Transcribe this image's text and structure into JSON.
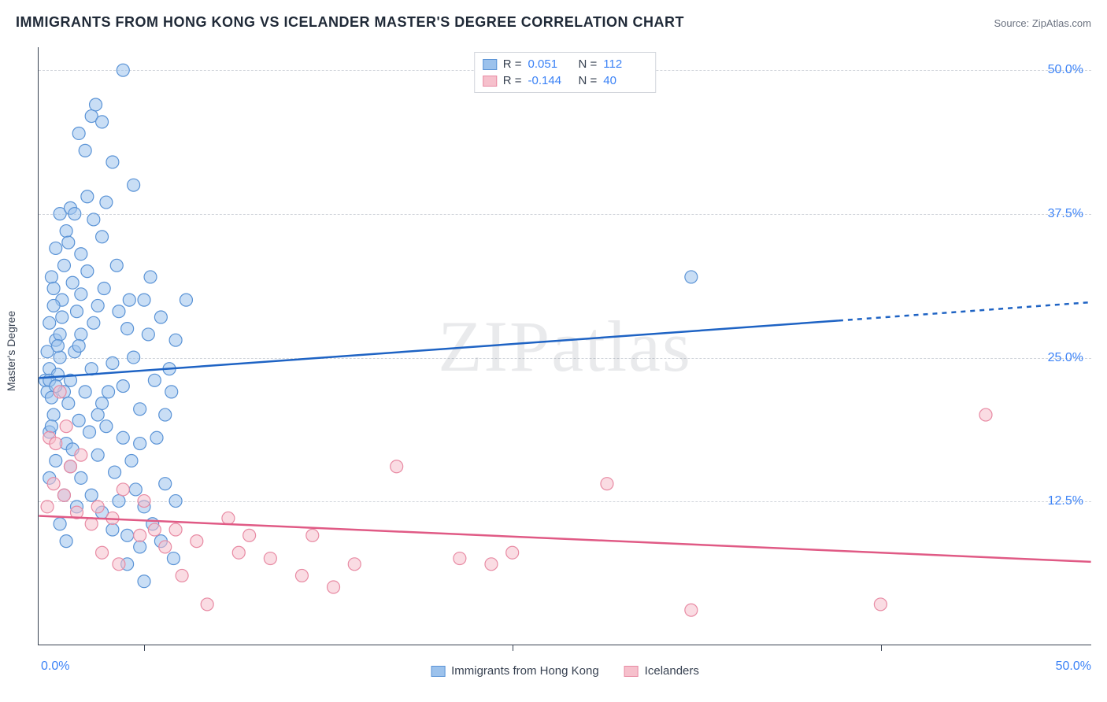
{
  "title": "IMMIGRANTS FROM HONG KONG VS ICELANDER MASTER'S DEGREE CORRELATION CHART",
  "source_label": "Source: ",
  "source_name": "ZipAtlas.com",
  "watermark": "ZIPatlas",
  "y_axis_label": "Master's Degree",
  "chart": {
    "type": "scatter",
    "xlim": [
      0,
      50
    ],
    "ylim": [
      0,
      52
    ],
    "x_min_label": "0.0%",
    "x_max_label": "50.0%",
    "y_ticks": [
      12.5,
      25.0,
      37.5,
      50.0
    ],
    "y_tick_labels": [
      "12.5%",
      "25.0%",
      "37.5%",
      "50.0%"
    ],
    "x_tick_positions": [
      5,
      22.5,
      40
    ],
    "grid_color": "#d1d5db",
    "axis_color": "#374151",
    "tick_label_color": "#3b82f6",
    "background_color": "#ffffff",
    "marker_radius": 8,
    "marker_opacity": 0.55,
    "line_width": 2.5,
    "series": [
      {
        "name": "Immigrants from Hong Kong",
        "key": "hongkong",
        "fill_color": "#9cc2ec",
        "stroke_color": "#5a93d6",
        "line_color": "#1e63c4",
        "r_value": "0.051",
        "n_value": "112",
        "trend": {
          "x1": 0,
          "y1": 23.2,
          "x2": 38,
          "y2": 28.2,
          "dash_x2": 50,
          "dash_y2": 29.8
        },
        "points": [
          [
            0.3,
            23.0
          ],
          [
            0.4,
            22.0
          ],
          [
            0.5,
            24.0
          ],
          [
            0.6,
            21.5
          ],
          [
            0.5,
            18.5
          ],
          [
            0.8,
            26.5
          ],
          [
            0.7,
            20.0
          ],
          [
            0.9,
            23.5
          ],
          [
            1.0,
            27.0
          ],
          [
            1.1,
            30.0
          ],
          [
            1.2,
            33.0
          ],
          [
            1.0,
            37.5
          ],
          [
            1.3,
            36.0
          ],
          [
            0.8,
            34.5
          ],
          [
            0.6,
            32.0
          ],
          [
            1.5,
            38.0
          ],
          [
            1.4,
            35.0
          ],
          [
            1.0,
            25.0
          ],
          [
            0.5,
            28.0
          ],
          [
            0.7,
            29.5
          ],
          [
            1.6,
            31.5
          ],
          [
            1.8,
            29.0
          ],
          [
            1.2,
            22.0
          ],
          [
            1.5,
            23.0
          ],
          [
            1.7,
            25.5
          ],
          [
            2.0,
            27.0
          ],
          [
            1.9,
            19.5
          ],
          [
            1.3,
            17.5
          ],
          [
            2.2,
            22.0
          ],
          [
            2.5,
            24.0
          ],
          [
            2.0,
            30.5
          ],
          [
            2.3,
            32.5
          ],
          [
            2.8,
            29.5
          ],
          [
            3.0,
            35.5
          ],
          [
            3.2,
            38.5
          ],
          [
            2.6,
            37.0
          ],
          [
            2.2,
            43.0
          ],
          [
            2.5,
            46.0
          ],
          [
            4.0,
            50.0
          ],
          [
            3.5,
            42.0
          ],
          [
            4.5,
            40.0
          ],
          [
            3.8,
            29.0
          ],
          [
            4.2,
            27.5
          ],
          [
            3.5,
            24.5
          ],
          [
            4.0,
            22.5
          ],
          [
            4.5,
            25.0
          ],
          [
            5.0,
            30.0
          ],
          [
            5.2,
            27.0
          ],
          [
            4.8,
            20.5
          ],
          [
            5.5,
            23.0
          ],
          [
            3.0,
            21.0
          ],
          [
            3.2,
            19.0
          ],
          [
            2.8,
            16.5
          ],
          [
            3.6,
            15.0
          ],
          [
            4.0,
            18.0
          ],
          [
            4.4,
            16.0
          ],
          [
            3.8,
            12.5
          ],
          [
            4.6,
            13.5
          ],
          [
            5.0,
            12.0
          ],
          [
            3.0,
            11.5
          ],
          [
            3.5,
            10.0
          ],
          [
            4.2,
            9.5
          ],
          [
            5.4,
            10.5
          ],
          [
            2.5,
            13.0
          ],
          [
            2.0,
            14.5
          ],
          [
            1.5,
            15.5
          ],
          [
            1.8,
            12.0
          ],
          [
            1.2,
            13.0
          ],
          [
            1.6,
            17.0
          ],
          [
            2.4,
            18.5
          ],
          [
            2.8,
            20.0
          ],
          [
            3.3,
            22.0
          ],
          [
            4.8,
            17.5
          ],
          [
            5.6,
            18.0
          ],
          [
            6.0,
            20.0
          ],
          [
            6.2,
            24.0
          ],
          [
            6.5,
            26.5
          ],
          [
            7.0,
            30.0
          ],
          [
            6.0,
            14.0
          ],
          [
            6.5,
            12.5
          ],
          [
            5.8,
            9.0
          ],
          [
            6.4,
            7.5
          ],
          [
            5.0,
            5.5
          ],
          [
            4.2,
            7.0
          ],
          [
            4.8,
            8.5
          ],
          [
            0.5,
            14.5
          ],
          [
            0.8,
            16.0
          ],
          [
            1.0,
            10.5
          ],
          [
            1.3,
            9.0
          ],
          [
            0.6,
            19.0
          ],
          [
            0.4,
            25.5
          ],
          [
            0.7,
            31.0
          ],
          [
            1.1,
            28.5
          ],
          [
            0.9,
            26.0
          ],
          [
            2.0,
            34.0
          ],
          [
            2.3,
            39.0
          ],
          [
            1.7,
            37.5
          ],
          [
            1.9,
            44.5
          ],
          [
            2.7,
            47.0
          ],
          [
            3.0,
            45.5
          ],
          [
            31.0,
            32.0
          ],
          [
            0.5,
            23.0
          ],
          [
            0.8,
            22.5
          ],
          [
            1.4,
            21.0
          ],
          [
            1.9,
            26.0
          ],
          [
            2.6,
            28.0
          ],
          [
            3.1,
            31.0
          ],
          [
            3.7,
            33.0
          ],
          [
            4.3,
            30.0
          ],
          [
            5.3,
            32.0
          ],
          [
            5.8,
            28.5
          ],
          [
            6.3,
            22.0
          ]
        ]
      },
      {
        "name": "Icelanders",
        "key": "icelanders",
        "fill_color": "#f6c0cc",
        "stroke_color": "#e88aa3",
        "line_color": "#e05a85",
        "r_value": "-0.144",
        "n_value": "40",
        "trend": {
          "x1": 0,
          "y1": 11.2,
          "x2": 50,
          "y2": 7.2
        },
        "points": [
          [
            0.5,
            18.0
          ],
          [
            0.8,
            17.5
          ],
          [
            1.0,
            22.0
          ],
          [
            1.3,
            19.0
          ],
          [
            1.5,
            15.5
          ],
          [
            1.2,
            13.0
          ],
          [
            0.7,
            14.0
          ],
          [
            0.4,
            12.0
          ],
          [
            2.0,
            16.5
          ],
          [
            1.8,
            11.5
          ],
          [
            2.5,
            10.5
          ],
          [
            3.0,
            8.0
          ],
          [
            2.8,
            12.0
          ],
          [
            3.5,
            11.0
          ],
          [
            4.0,
            13.5
          ],
          [
            4.8,
            9.5
          ],
          [
            5.5,
            10.0
          ],
          [
            5.0,
            12.5
          ],
          [
            6.0,
            8.5
          ],
          [
            6.5,
            10.0
          ],
          [
            7.5,
            9.0
          ],
          [
            8.0,
            3.5
          ],
          [
            9.0,
            11.0
          ],
          [
            9.5,
            8.0
          ],
          [
            10.0,
            9.5
          ],
          [
            11.0,
            7.5
          ],
          [
            12.5,
            6.0
          ],
          [
            13.0,
            9.5
          ],
          [
            14.0,
            5.0
          ],
          [
            15.0,
            7.0
          ],
          [
            17.0,
            15.5
          ],
          [
            20.0,
            7.5
          ],
          [
            21.5,
            7.0
          ],
          [
            22.5,
            8.0
          ],
          [
            27.0,
            14.0
          ],
          [
            31.0,
            3.0
          ],
          [
            40.0,
            3.5
          ],
          [
            45.0,
            20.0
          ],
          [
            3.8,
            7.0
          ],
          [
            6.8,
            6.0
          ]
        ]
      }
    ]
  },
  "legend_top": {
    "r_label": "R =",
    "n_label": "N ="
  },
  "legend_bottom": [
    {
      "label": "Immigrants from Hong Kong",
      "fill": "#9cc2ec",
      "stroke": "#5a93d6"
    },
    {
      "label": "Icelanders",
      "fill": "#f6c0cc",
      "stroke": "#e88aa3"
    }
  ]
}
